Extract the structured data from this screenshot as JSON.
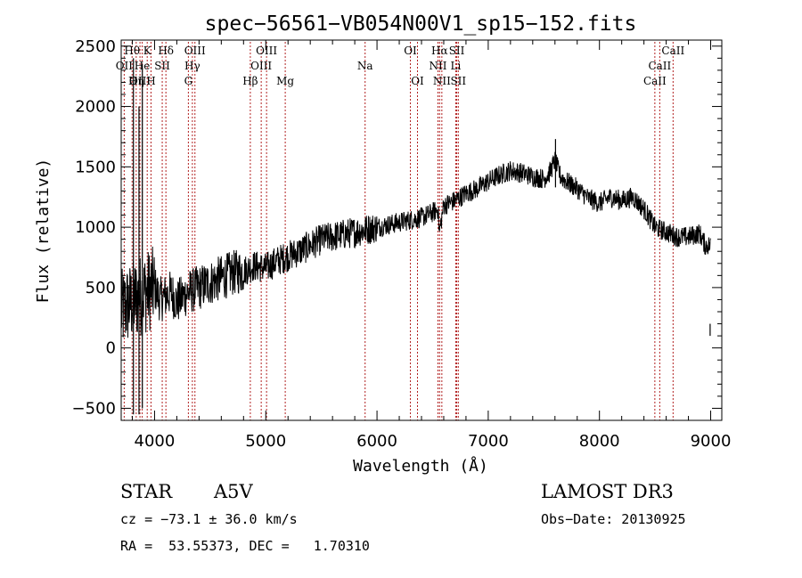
{
  "chart_data": {
    "type": "line",
    "title": "spec−56561−VB054N00V1_sp15−152.fits",
    "xlabel": "Wavelength (Å)",
    "ylabel": "Flux (relative)",
    "xlim": [
      3700,
      9100
    ],
    "ylim": [
      -600,
      2550
    ],
    "xticks": [
      4000,
      5000,
      6000,
      7000,
      8000,
      9000
    ],
    "yticks": [
      -500,
      0,
      500,
      1000,
      1500,
      2000,
      2500
    ],
    "series": [
      {
        "name": "spectrum",
        "x": [
          3700,
          3750,
          3800,
          3850,
          3900,
          3950,
          4000,
          4050,
          4100,
          4150,
          4200,
          4250,
          4300,
          4350,
          4400,
          4450,
          4500,
          4600,
          4700,
          4800,
          4900,
          5000,
          5100,
          5200,
          5300,
          5400,
          5500,
          5600,
          5700,
          5800,
          5900,
          6000,
          6100,
          6200,
          6300,
          6400,
          6500,
          6550,
          6560,
          6600,
          6700,
          6800,
          6900,
          7000,
          7100,
          7200,
          7300,
          7400,
          7500,
          7550,
          7600,
          7650,
          7700,
          7800,
          7900,
          8000,
          8100,
          8200,
          8300,
          8400,
          8500,
          8600,
          8700,
          8800,
          8900,
          8950,
          9000
        ],
        "y": [
          300,
          350,
          380,
          420,
          450,
          480,
          500,
          400,
          430,
          460,
          380,
          420,
          460,
          480,
          500,
          520,
          540,
          580,
          620,
          640,
          680,
          660,
          720,
          760,
          800,
          850,
          900,
          920,
          940,
          960,
          980,
          1000,
          1020,
          1040,
          1060,
          1080,
          1120,
          1150,
          950,
          1180,
          1220,
          1280,
          1320,
          1380,
          1430,
          1470,
          1450,
          1420,
          1400,
          1450,
          1550,
          1420,
          1380,
          1320,
          1240,
          1200,
          1250,
          1220,
          1250,
          1150,
          1000,
          960,
          920,
          920,
          950,
          850,
          850
        ]
      }
    ],
    "spikes": [
      {
        "x": 3810,
        "y": 2400,
        "depth": -550
      },
      {
        "x": 3890,
        "y": 2350,
        "depth": -500
      },
      {
        "x": 3860,
        "y": 2000,
        "depth": -550
      },
      {
        "x": 7605,
        "y": 1730,
        "depth": 1330
      },
      {
        "x": 8995,
        "y": 200,
        "depth": 100
      }
    ],
    "emission_lines": [
      {
        "label": "Hθ",
        "x": 3798,
        "row": 0
      },
      {
        "label": "K",
        "x": 3934,
        "row": 0
      },
      {
        "label": "Hδ",
        "x": 4102,
        "row": 0
      },
      {
        "label": "OIII",
        "x": 4363,
        "row": 0
      },
      {
        "label": "OIII",
        "x": 5007,
        "row": 0
      },
      {
        "label": "OI",
        "x": 6300,
        "row": 0
      },
      {
        "label": "Hα",
        "x": 6563,
        "row": 0
      },
      {
        "label": "SII",
        "x": 6717,
        "row": 0
      },
      {
        "label": "CaII",
        "x": 8662,
        "row": 0
      },
      {
        "label": "OII",
        "x": 3727,
        "row": 1
      },
      {
        "label": "He",
        "x": 3889,
        "row": 1
      },
      {
        "label": "SII",
        "x": 4069,
        "row": 1
      },
      {
        "label": "Hγ",
        "x": 4340,
        "row": 1
      },
      {
        "label": "OIII",
        "x": 4959,
        "row": 1
      },
      {
        "label": "Na",
        "x": 5893,
        "row": 1
      },
      {
        "label": "NII",
        "x": 6548,
        "row": 1
      },
      {
        "label": "Li",
        "x": 6708,
        "row": 1
      },
      {
        "label": "CaII",
        "x": 8542,
        "row": 1
      },
      {
        "label": "OIII",
        "x": 3869,
        "row": 2
      },
      {
        "label": "Hη",
        "x": 3835,
        "row": 2
      },
      {
        "label": "H",
        "x": 3968,
        "row": 2
      },
      {
        "label": "G",
        "x": 4304,
        "row": 2
      },
      {
        "label": "Hβ",
        "x": 4861,
        "row": 2
      },
      {
        "label": "Mg",
        "x": 5175,
        "row": 2
      },
      {
        "label": "OI",
        "x": 6364,
        "row": 2
      },
      {
        "label": "NII",
        "x": 6583,
        "row": 2
      },
      {
        "label": "SII",
        "x": 6731,
        "row": 2
      },
      {
        "label": "CaII",
        "x": 8498,
        "row": 2
      }
    ]
  },
  "info": {
    "class": "STAR",
    "subclass": "A5V",
    "survey": "LAMOST DR3",
    "cz": "cz = −73.1 ± 36.0 km/s",
    "obs_date": "Obs−Date: 20130925",
    "radec": "RA =  53.55373, DEC =   1.70310"
  },
  "colors": {
    "line_marker": "#b22222",
    "spectrum": "#000000"
  }
}
